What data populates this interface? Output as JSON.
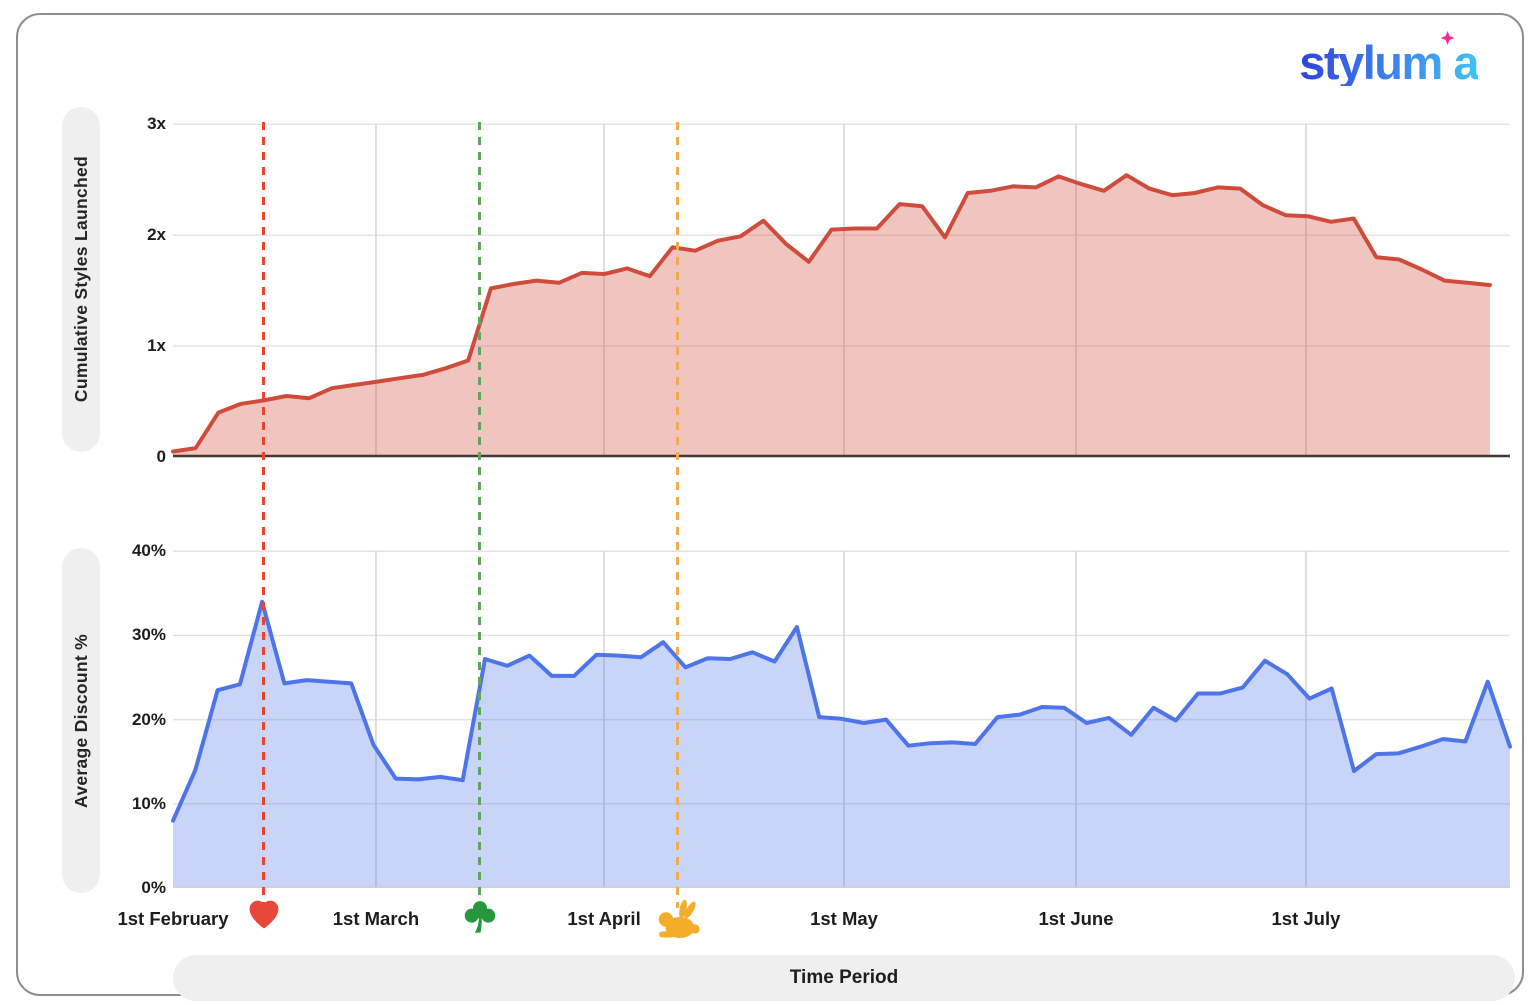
{
  "logo": {
    "text": "stylumia",
    "gradient_start": "#2e43de",
    "gradient_end": "#3fc3f3",
    "sparkle_color": "#ee2d9b"
  },
  "x_axis": {
    "xlabel": "Time Period",
    "months": [
      {
        "label": "1st February",
        "pos": 0.0
      },
      {
        "label": "1st March",
        "pos": 0.1518
      },
      {
        "label": "1st April",
        "pos": 0.3224
      },
      {
        "label": "1st May",
        "pos": 0.5019
      },
      {
        "label": "1st June",
        "pos": 0.6754
      },
      {
        "label": "1st July",
        "pos": 0.8474
      }
    ],
    "events": [
      {
        "name": "valentines-day",
        "icon": "heart-icon",
        "pos": 0.068,
        "line_color": "#e8442e",
        "icon_color": "#e8483a"
      },
      {
        "name": "st-patricks-day",
        "icon": "shamrock-icon",
        "pos": 0.2295,
        "line_color": "#63a45c",
        "icon_color": "#27963c"
      },
      {
        "name": "easter",
        "icon": "rabbit-icon",
        "pos": 0.377,
        "line_color": "#f2ab4e",
        "icon_color": "#f3ad28"
      }
    ]
  },
  "grid": {
    "h_color": "#e2e2e2",
    "v_color": "#d6d6d6",
    "baseline_dark": "#463732",
    "baseline_light": "#cfcfcf"
  },
  "chart_data": [
    {
      "type": "area",
      "ylabel": "Cumulative Styles Launched",
      "xlabel": "Time Period",
      "x_start": "1st February",
      "x_step_days": 3,
      "ylim": [
        0,
        3.02
      ],
      "yticks": [
        {
          "label": "0",
          "value": 0
        },
        {
          "label": "1x",
          "value": 1
        },
        {
          "label": "2x",
          "value": 2
        },
        {
          "label": "3x",
          "value": 3
        }
      ],
      "line_color": "#cf4c3c",
      "fill_color": "rgba(207,76,60,0.32)",
      "span": 0.985,
      "values": [
        0.05,
        0.08,
        0.4,
        0.48,
        0.51,
        0.55,
        0.53,
        0.62,
        0.65,
        0.68,
        0.71,
        0.74,
        0.8,
        0.87,
        1.52,
        1.56,
        1.59,
        1.57,
        1.66,
        1.65,
        1.7,
        1.63,
        1.89,
        1.86,
        1.95,
        1.99,
        2.13,
        1.92,
        1.76,
        2.05,
        2.06,
        2.06,
        2.28,
        2.26,
        1.98,
        2.38,
        2.4,
        2.44,
        2.43,
        2.53,
        2.46,
        2.4,
        2.54,
        2.42,
        2.36,
        2.38,
        2.43,
        2.42,
        2.27,
        2.18,
        2.17,
        2.12,
        2.15,
        1.8,
        1.78,
        1.69,
        1.59,
        1.57,
        1.55
      ]
    },
    {
      "type": "area",
      "ylabel": "Average Discount %",
      "xlabel": "Time Period",
      "x_start": "1st February",
      "x_step_days": 3,
      "ylim": [
        0,
        41.1
      ],
      "yticks": [
        {
          "label": "0%",
          "value": 0
        },
        {
          "label": "10%",
          "value": 10
        },
        {
          "label": "20%",
          "value": 20
        },
        {
          "label": "30%",
          "value": 30
        },
        {
          "label": "40%",
          "value": 40
        }
      ],
      "line_color": "#4d74e8",
      "fill_color": "rgba(77,116,232,0.30)",
      "span": 1.0,
      "values": [
        8,
        14,
        23.5,
        24.2,
        34,
        24.3,
        24.7,
        24.5,
        24.3,
        17,
        13,
        12.9,
        13.2,
        12.8,
        27.2,
        26.4,
        27.6,
        25.2,
        25.2,
        27.7,
        27.6,
        27.4,
        29.2,
        26.2,
        27.3,
        27.2,
        28,
        26.9,
        31,
        20.3,
        20.1,
        19.6,
        20,
        16.9,
        17.2,
        17.3,
        17.1,
        20.3,
        20.6,
        21.5,
        21.4,
        19.6,
        20.2,
        18.2,
        21.4,
        19.9,
        23.1,
        23.1,
        23.8,
        27,
        25.4,
        22.5,
        23.7,
        13.9,
        15.9,
        16,
        16.8,
        17.7,
        17.4,
        24.5,
        16.8
      ]
    }
  ]
}
